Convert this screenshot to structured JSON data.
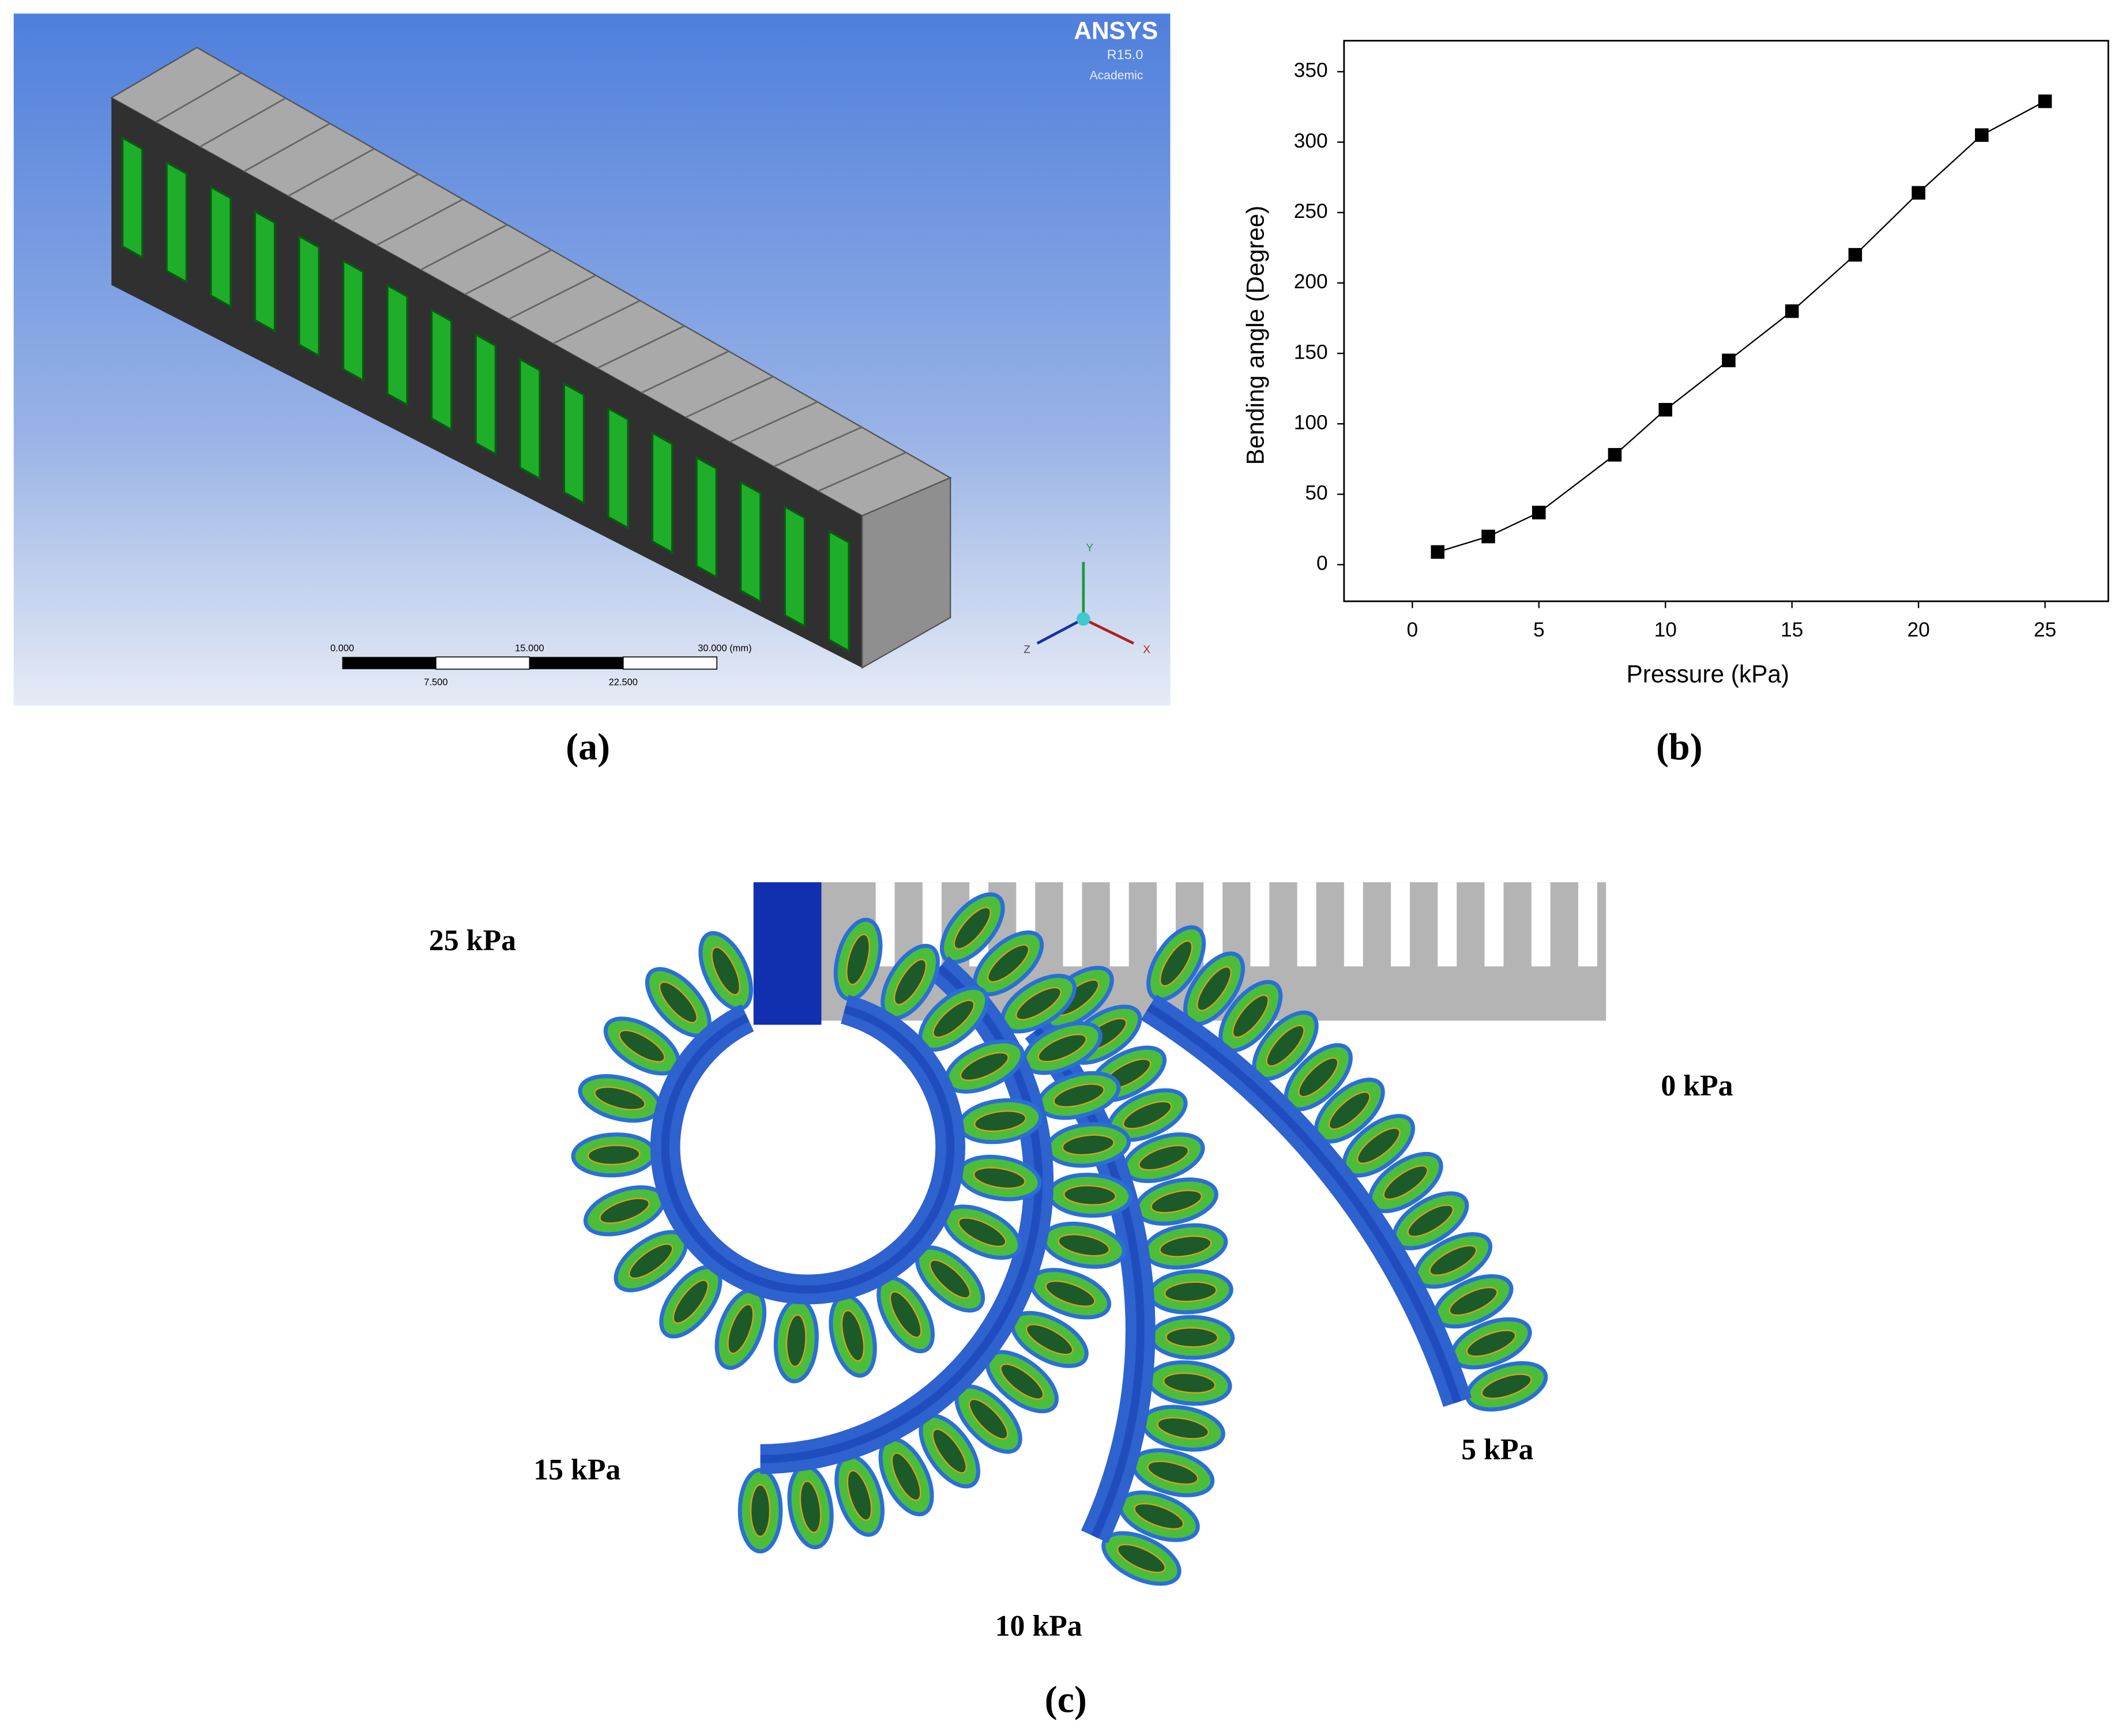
{
  "panel_a": {
    "logo": "ANSYS",
    "version": "R15.0",
    "license": "Academic",
    "scale_labels": [
      "0.000",
      "15.000",
      "30.000 (mm)",
      "7.500",
      "22.500"
    ],
    "axes": [
      "Y",
      "Z",
      "X"
    ]
  },
  "chart_data": {
    "type": "line",
    "x_label": "Pressure (kPa)",
    "y_label": "Bending angle (Degree)",
    "x": [
      1,
      3,
      5,
      8,
      10,
      12.5,
      15,
      17.5,
      20,
      22.5,
      25
    ],
    "values": [
      9,
      20,
      37,
      78,
      110,
      145,
      180,
      220,
      264,
      305,
      329
    ],
    "color": "#000000",
    "marker": "square",
    "xlim": [
      -2.7,
      27.5
    ],
    "ylim": [
      -26,
      372
    ],
    "xticks": [
      0,
      5,
      10,
      15,
      20,
      25
    ],
    "yticks": [
      0,
      50,
      100,
      150,
      200,
      250,
      300,
      350
    ],
    "grid": false
  },
  "panel_c": {
    "labels": [
      "25 kPa",
      "0 kPa",
      "15 kPa",
      "5 kPa",
      "10 kPa"
    ]
  },
  "panel_labels": [
    "(a)",
    "(b)",
    "(c)"
  ]
}
